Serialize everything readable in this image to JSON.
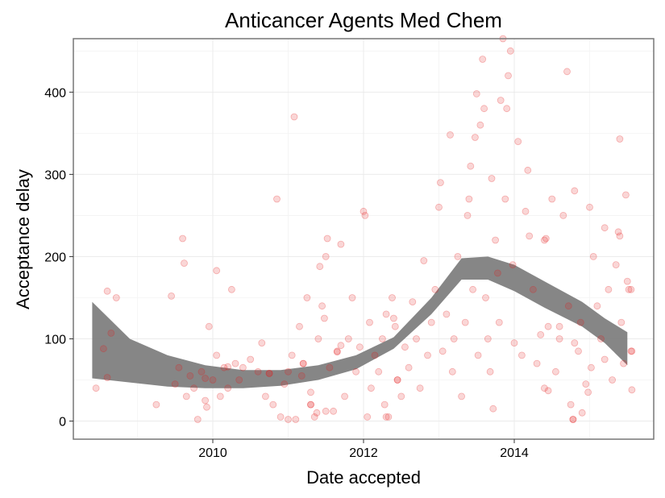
{
  "chart_data": {
    "type": "scatter",
    "title": "Anticancer Agents Med Chem",
    "xlabel": "Date accepted",
    "ylabel": "Acceptance delay",
    "x_unit": "year",
    "xlim": [
      2008.15,
      2015.85
    ],
    "ylim": [
      -22,
      465
    ],
    "x_ticks": [
      2010,
      2012,
      2014
    ],
    "x_tick_labels": [
      "2010",
      "2012",
      "2014"
    ],
    "y_ticks": [
      0,
      100,
      200,
      300,
      400
    ],
    "y_tick_labels": [
      "0",
      "100",
      "200",
      "300",
      "400"
    ],
    "grid": true,
    "legend": "none",
    "colors": {
      "points": "#e41a1c",
      "smooth_band": "#808080",
      "panel_border": "#777777",
      "grid": "#ebebeb"
    },
    "smooth_band": {
      "x": [
        2008.4,
        2008.9,
        2009.4,
        2009.9,
        2010.4,
        2010.9,
        2011.4,
        2011.9,
        2012.4,
        2012.9,
        2013.3,
        2013.65,
        2014.0,
        2014.4,
        2014.9,
        2015.2,
        2015.5
      ],
      "lower": [
        52,
        47,
        42,
        40,
        40,
        43,
        50,
        63,
        88,
        130,
        172,
        172,
        158,
        138,
        115,
        95,
        68
      ],
      "upper": [
        145,
        100,
        80,
        68,
        62,
        62,
        68,
        80,
        102,
        150,
        198,
        200,
        190,
        170,
        145,
        125,
        108
      ]
    },
    "points": [
      {
        "x": 2008.45,
        "y": 40
      },
      {
        "x": 2008.55,
        "y": 88
      },
      {
        "x": 2008.6,
        "y": 158
      },
      {
        "x": 2008.65,
        "y": 107
      },
      {
        "x": 2008.72,
        "y": 150
      },
      {
        "x": 2008.6,
        "y": 53
      },
      {
        "x": 2009.25,
        "y": 20
      },
      {
        "x": 2009.45,
        "y": 152
      },
      {
        "x": 2009.5,
        "y": 45
      },
      {
        "x": 2009.55,
        "y": 65
      },
      {
        "x": 2009.6,
        "y": 222
      },
      {
        "x": 2009.62,
        "y": 192
      },
      {
        "x": 2009.65,
        "y": 30
      },
      {
        "x": 2009.7,
        "y": 55
      },
      {
        "x": 2009.75,
        "y": 40
      },
      {
        "x": 2009.8,
        "y": 2
      },
      {
        "x": 2009.85,
        "y": 60
      },
      {
        "x": 2009.9,
        "y": 25
      },
      {
        "x": 2009.95,
        "y": 115
      },
      {
        "x": 2010.0,
        "y": 50
      },
      {
        "x": 2010.05,
        "y": 80
      },
      {
        "x": 2010.1,
        "y": 30
      },
      {
        "x": 2010.15,
        "y": 65
      },
      {
        "x": 2010.2,
        "y": 40
      },
      {
        "x": 2010.25,
        "y": 160
      },
      {
        "x": 2010.3,
        "y": 70
      },
      {
        "x": 2010.35,
        "y": 50
      },
      {
        "x": 2010.4,
        "y": 65
      },
      {
        "x": 2010.5,
        "y": 75
      },
      {
        "x": 2009.92,
        "y": 17
      },
      {
        "x": 2010.05,
        "y": 183
      },
      {
        "x": 2010.6,
        "y": 60
      },
      {
        "x": 2010.65,
        "y": 95
      },
      {
        "x": 2010.7,
        "y": 30
      },
      {
        "x": 2010.75,
        "y": 58
      },
      {
        "x": 2010.8,
        "y": 20
      },
      {
        "x": 2010.85,
        "y": 270
      },
      {
        "x": 2010.9,
        "y": 5
      },
      {
        "x": 2010.95,
        "y": 45
      },
      {
        "x": 2011.0,
        "y": 60
      },
      {
        "x": 2011.05,
        "y": 80
      },
      {
        "x": 2011.08,
        "y": 370
      },
      {
        "x": 2011.1,
        "y": 2
      },
      {
        "x": 2011.15,
        "y": 115
      },
      {
        "x": 2011.18,
        "y": 55
      },
      {
        "x": 2011.2,
        "y": 70
      },
      {
        "x": 2011.25,
        "y": 150
      },
      {
        "x": 2011.3,
        "y": 35
      },
      {
        "x": 2011.3,
        "y": 20
      },
      {
        "x": 2011.35,
        "y": 5
      },
      {
        "x": 2011.38,
        "y": 10
      },
      {
        "x": 2011.4,
        "y": 100
      },
      {
        "x": 2011.42,
        "y": 188
      },
      {
        "x": 2011.45,
        "y": 140
      },
      {
        "x": 2011.48,
        "y": 125
      },
      {
        "x": 2011.5,
        "y": 200
      },
      {
        "x": 2011.52,
        "y": 222
      },
      {
        "x": 2011.55,
        "y": 65
      },
      {
        "x": 2011.6,
        "y": 12
      },
      {
        "x": 2011.65,
        "y": 85
      },
      {
        "x": 2011.7,
        "y": 215
      },
      {
        "x": 2011.75,
        "y": 30
      },
      {
        "x": 2011.8,
        "y": 100
      },
      {
        "x": 2011.85,
        "y": 150
      },
      {
        "x": 2011.9,
        "y": 60
      },
      {
        "x": 2011.95,
        "y": 90
      },
      {
        "x": 2012.0,
        "y": 255
      },
      {
        "x": 2012.02,
        "y": 250
      },
      {
        "x": 2012.05,
        "y": 5
      },
      {
        "x": 2012.08,
        "y": 120
      },
      {
        "x": 2012.1,
        "y": 40
      },
      {
        "x": 2012.15,
        "y": 80
      },
      {
        "x": 2012.2,
        "y": 60
      },
      {
        "x": 2012.25,
        "y": 100
      },
      {
        "x": 2012.28,
        "y": 20
      },
      {
        "x": 2012.3,
        "y": 130
      },
      {
        "x": 2012.33,
        "y": 5
      },
      {
        "x": 2012.38,
        "y": 150
      },
      {
        "x": 2012.42,
        "y": 115
      },
      {
        "x": 2012.45,
        "y": 50
      },
      {
        "x": 2012.5,
        "y": 30
      },
      {
        "x": 2012.55,
        "y": 90
      },
      {
        "x": 2012.6,
        "y": 65
      },
      {
        "x": 2012.65,
        "y": 145
      },
      {
        "x": 2012.7,
        "y": 100
      },
      {
        "x": 2012.75,
        "y": 40
      },
      {
        "x": 2012.8,
        "y": 195
      },
      {
        "x": 2012.85,
        "y": 80
      },
      {
        "x": 2012.9,
        "y": 120
      },
      {
        "x": 2012.95,
        "y": 160
      },
      {
        "x": 2013.0,
        "y": 260
      },
      {
        "x": 2013.02,
        "y": 290
      },
      {
        "x": 2013.05,
        "y": 85
      },
      {
        "x": 2013.1,
        "y": 130
      },
      {
        "x": 2013.15,
        "y": 348
      },
      {
        "x": 2013.18,
        "y": 60
      },
      {
        "x": 2013.2,
        "y": 100
      },
      {
        "x": 2013.25,
        "y": 200
      },
      {
        "x": 2013.3,
        "y": 30
      },
      {
        "x": 2013.35,
        "y": 120
      },
      {
        "x": 2013.38,
        "y": 250
      },
      {
        "x": 2013.4,
        "y": 270
      },
      {
        "x": 2013.42,
        "y": 310
      },
      {
        "x": 2013.45,
        "y": 160
      },
      {
        "x": 2013.48,
        "y": 345
      },
      {
        "x": 2013.5,
        "y": 398
      },
      {
        "x": 2013.52,
        "y": 80
      },
      {
        "x": 2013.55,
        "y": 360
      },
      {
        "x": 2013.58,
        "y": 440
      },
      {
        "x": 2013.6,
        "y": 380
      },
      {
        "x": 2013.62,
        "y": 150
      },
      {
        "x": 2013.65,
        "y": 100
      },
      {
        "x": 2013.68,
        "y": 60
      },
      {
        "x": 2013.7,
        "y": 295
      },
      {
        "x": 2013.72,
        "y": 15
      },
      {
        "x": 2013.75,
        "y": 220
      },
      {
        "x": 2013.78,
        "y": 180
      },
      {
        "x": 2013.8,
        "y": 120
      },
      {
        "x": 2013.82,
        "y": 390
      },
      {
        "x": 2013.85,
        "y": 465
      },
      {
        "x": 2013.88,
        "y": 270
      },
      {
        "x": 2013.9,
        "y": 380
      },
      {
        "x": 2013.92,
        "y": 420
      },
      {
        "x": 2013.95,
        "y": 450
      },
      {
        "x": 2013.98,
        "y": 190
      },
      {
        "x": 2014.0,
        "y": 95
      },
      {
        "x": 2014.05,
        "y": 340
      },
      {
        "x": 2014.1,
        "y": 80
      },
      {
        "x": 2014.15,
        "y": 255
      },
      {
        "x": 2014.18,
        "y": 305
      },
      {
        "x": 2014.2,
        "y": 225
      },
      {
        "x": 2014.25,
        "y": 160
      },
      {
        "x": 2014.3,
        "y": 70
      },
      {
        "x": 2014.35,
        "y": 105
      },
      {
        "x": 2014.4,
        "y": 40
      },
      {
        "x": 2014.42,
        "y": 222
      },
      {
        "x": 2014.45,
        "y": 115
      },
      {
        "x": 2014.5,
        "y": 270
      },
      {
        "x": 2014.55,
        "y": 60
      },
      {
        "x": 2014.6,
        "y": 100
      },
      {
        "x": 2014.65,
        "y": 250
      },
      {
        "x": 2014.7,
        "y": 425
      },
      {
        "x": 2014.72,
        "y": 140
      },
      {
        "x": 2014.75,
        "y": 20
      },
      {
        "x": 2014.78,
        "y": 2
      },
      {
        "x": 2014.8,
        "y": 280
      },
      {
        "x": 2014.85,
        "y": 85
      },
      {
        "x": 2014.88,
        "y": 120
      },
      {
        "x": 2014.9,
        "y": 10
      },
      {
        "x": 2014.95,
        "y": 45
      },
      {
        "x": 2015.0,
        "y": 260
      },
      {
        "x": 2015.02,
        "y": 65
      },
      {
        "x": 2015.05,
        "y": 200
      },
      {
        "x": 2015.1,
        "y": 140
      },
      {
        "x": 2015.15,
        "y": 100
      },
      {
        "x": 2015.2,
        "y": 235
      },
      {
        "x": 2015.25,
        "y": 160
      },
      {
        "x": 2015.3,
        "y": 50
      },
      {
        "x": 2015.35,
        "y": 190
      },
      {
        "x": 2015.38,
        "y": 230
      },
      {
        "x": 2015.4,
        "y": 343
      },
      {
        "x": 2015.42,
        "y": 120
      },
      {
        "x": 2015.45,
        "y": 70
      },
      {
        "x": 2015.48,
        "y": 275
      },
      {
        "x": 2015.5,
        "y": 170
      },
      {
        "x": 2015.52,
        "y": 160
      },
      {
        "x": 2015.55,
        "y": 85
      },
      {
        "x": 2015.56,
        "y": 38
      },
      {
        "x": 2009.9,
        "y": 52
      },
      {
        "x": 2010.2,
        "y": 66
      },
      {
        "x": 2010.75,
        "y": 58
      },
      {
        "x": 2011.0,
        "y": 2
      },
      {
        "x": 2011.2,
        "y": 70
      },
      {
        "x": 2011.3,
        "y": 20
      },
      {
        "x": 2011.5,
        "y": 12
      },
      {
        "x": 2011.65,
        "y": 84
      },
      {
        "x": 2011.7,
        "y": 92
      },
      {
        "x": 2012.3,
        "y": 5
      },
      {
        "x": 2012.45,
        "y": 50
      },
      {
        "x": 2012.4,
        "y": 125
      },
      {
        "x": 2014.4,
        "y": 220
      },
      {
        "x": 2014.45,
        "y": 37
      },
      {
        "x": 2014.6,
        "y": 115
      },
      {
        "x": 2014.8,
        "y": 95
      },
      {
        "x": 2015.2,
        "y": 75
      },
      {
        "x": 2015.55,
        "y": 160
      },
      {
        "x": 2015.4,
        "y": 225
      },
      {
        "x": 2015.56,
        "y": 85
      },
      {
        "x": 2014.78,
        "y": 2
      },
      {
        "x": 2014.98,
        "y": 35
      }
    ]
  }
}
